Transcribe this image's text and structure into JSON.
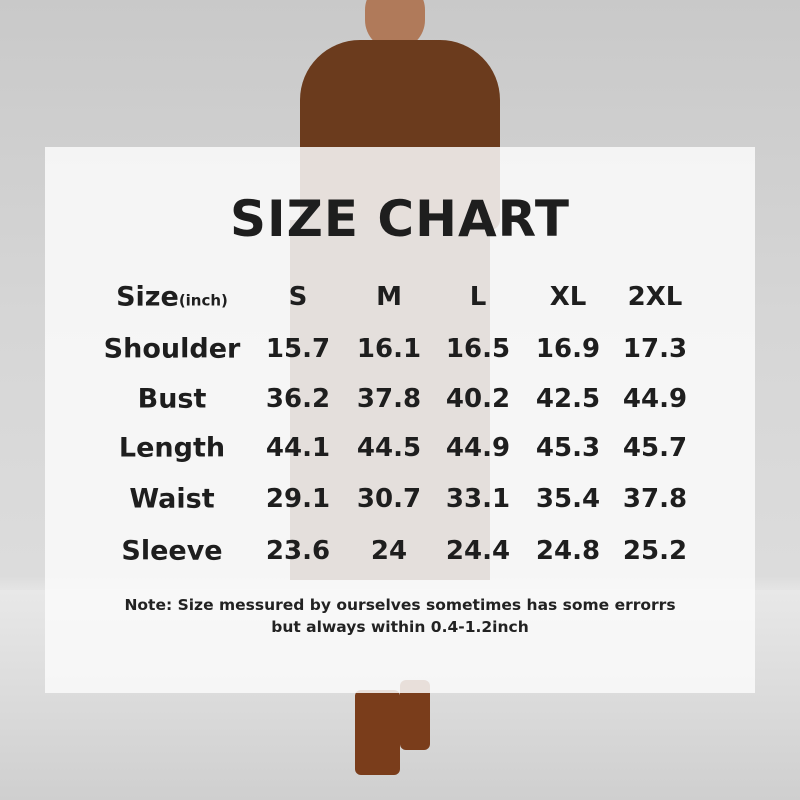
{
  "title": "SIZE CHART",
  "header": {
    "label": "Size",
    "unit": "(inch)",
    "sizes": [
      "S",
      "M",
      "L",
      "XL",
      "2XL"
    ]
  },
  "rows": [
    {
      "label": "Shoulder",
      "values": [
        "15.7",
        "16.1",
        "16.5",
        "16.9",
        "17.3"
      ]
    },
    {
      "label": "Bust",
      "values": [
        "36.2",
        "37.8",
        "40.2",
        "42.5",
        "44.9"
      ]
    },
    {
      "label": "Length",
      "values": [
        "44.1",
        "44.5",
        "44.9",
        "45.3",
        "45.7"
      ]
    },
    {
      "label": "Waist",
      "values": [
        "29.1",
        "30.7",
        "33.1",
        "35.4",
        "37.8"
      ]
    },
    {
      "label": "Sleeve",
      "values": [
        "23.6",
        "24",
        "24.4",
        "24.8",
        "25.2"
      ]
    }
  ],
  "note": {
    "line1": "Note:  Size messured by ourselves sometimes has some errorrs",
    "line2": "but always within 0.4-1.2inch"
  }
}
